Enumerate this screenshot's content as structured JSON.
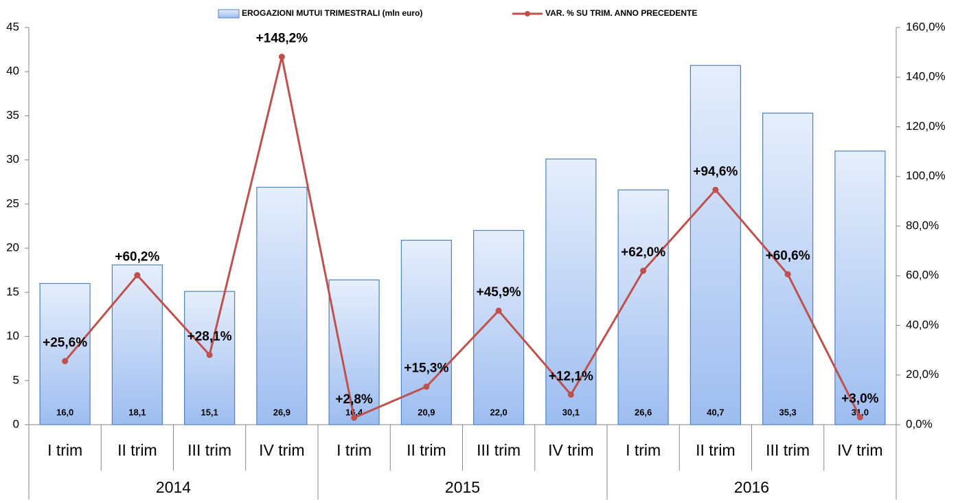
{
  "chart_data": {
    "type": "bar_line",
    "categories": [
      "I trim",
      "II trim",
      "III trim",
      "IV trim",
      "I trim",
      "II trim",
      "III trim",
      "IV trim",
      "I trim",
      "II trim",
      "III trim",
      "IV trim"
    ],
    "groups": [
      "2014",
      "2015",
      "2016"
    ],
    "series": [
      {
        "name": "EROGAZIONI MUTUI TRIMESTRALI (mln euro)",
        "type": "bar",
        "color": "#4f81bd",
        "values": [
          16.0,
          18.1,
          15.1,
          26.9,
          16.4,
          20.9,
          22.0,
          30.1,
          26.6,
          40.7,
          35.3,
          31.0
        ],
        "value_labels": [
          "16,0",
          "18,1",
          "15,1",
          "26,9",
          "16,4",
          "20,9",
          "22,0",
          "30,1",
          "26,6",
          "40,7",
          "35,3",
          "31,0"
        ]
      },
      {
        "name": "VAR. % SU TRIM. ANNO PRECEDENTE",
        "type": "line",
        "color": "#c0504d",
        "axis": "y2",
        "values": [
          25.6,
          60.2,
          28.1,
          148.2,
          2.8,
          15.3,
          45.9,
          12.1,
          62.0,
          94.6,
          60.6,
          3.0
        ],
        "value_labels": [
          "+25,6%",
          "+60,2%",
          "+28,1%",
          "+148,2%",
          "+2,8%",
          "+15,3%",
          "+45,9%",
          "+12,1%",
          "+62,0%",
          "+94,6%",
          "+60,6%",
          "+3,0%"
        ]
      }
    ],
    "ylim": [
      0,
      45
    ],
    "yticks": [
      0,
      5,
      10,
      15,
      20,
      25,
      30,
      35,
      40,
      45
    ],
    "y2lim": [
      0,
      160
    ],
    "y2ticks": [
      {
        "value": 0,
        "label": "0,0%"
      },
      {
        "value": 20,
        "label": "20,0%"
      },
      {
        "value": 40,
        "label": "40,0%"
      },
      {
        "value": 60,
        "label": "60,0%"
      },
      {
        "value": 80,
        "label": "80,0%"
      },
      {
        "value": 100,
        "label": "100,0%"
      },
      {
        "value": 120,
        "label": "120,0%"
      },
      {
        "value": 140,
        "label": "140,0%"
      },
      {
        "value": 160,
        "label": "160,0%"
      }
    ],
    "legend": "top",
    "grid": false
  }
}
